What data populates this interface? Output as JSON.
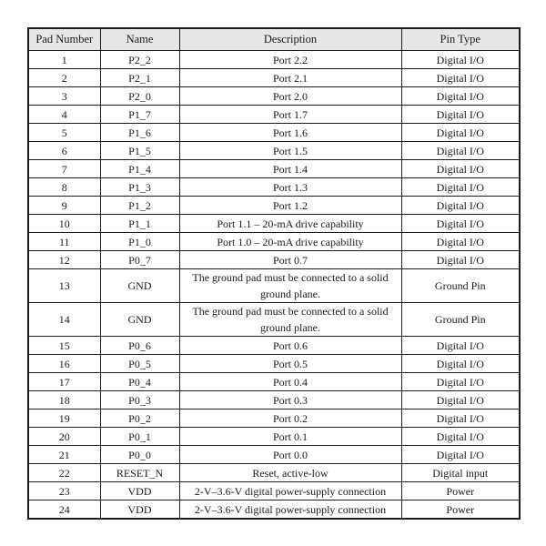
{
  "page": {
    "background_color": "#ffffff",
    "text_color": "#1a1a1a"
  },
  "colors": {
    "header_background": "#e7e7e7",
    "border": "#1c1c1c"
  },
  "table": {
    "headers": [
      "Pad Number",
      "Name",
      "Description",
      "Pin Type"
    ],
    "rows": [
      [
        "1",
        "P2_2",
        "Port 2.2",
        "Digital I/O"
      ],
      [
        "2",
        "P2_1",
        "Port 2.1",
        "Digital I/O"
      ],
      [
        "3",
        "P2_0",
        "Port 2.0",
        "Digital I/O"
      ],
      [
        "4",
        "P1_7",
        "Port 1.7",
        "Digital I/O"
      ],
      [
        "5",
        "P1_6",
        "Port 1.6",
        "Digital I/O"
      ],
      [
        "6",
        "P1_5",
        "Port 1.5",
        "Digital I/O"
      ],
      [
        "7",
        "P1_4",
        "Port 1.4",
        "Digital I/O"
      ],
      [
        "8",
        "P1_3",
        "Port 1.3",
        "Digital I/O"
      ],
      [
        "9",
        "P1_2",
        "Port 1.2",
        "Digital I/O"
      ],
      [
        "10",
        "P1_1",
        "Port 1.1 – 20-mA drive capability",
        "Digital I/O"
      ],
      [
        "11",
        "P1_0",
        "Port 1.0 – 20-mA drive capability",
        "Digital I/O"
      ],
      [
        "12",
        "P0_7",
        "Port 0.7",
        "Digital I/O"
      ],
      [
        "13",
        "GND",
        "The ground pad must be connected to a solid ground plane.",
        "Ground Pin"
      ],
      [
        "14",
        "GND",
        "The ground pad must be connected to a solid ground plane.",
        "Ground Pin"
      ],
      [
        "15",
        "P0_6",
        "Port 0.6",
        "Digital I/O"
      ],
      [
        "16",
        "P0_5",
        "Port 0.5",
        "Digital I/O"
      ],
      [
        "17",
        "P0_4",
        "Port 0.4",
        "Digital I/O"
      ],
      [
        "18",
        "P0_3",
        "Port 0.3",
        "Digital I/O"
      ],
      [
        "19",
        "P0_2",
        "Port 0.2",
        "Digital I/O"
      ],
      [
        "20",
        "P0_1",
        "Port 0.1",
        "Digital I/O"
      ],
      [
        "21",
        "P0_0",
        "Port 0.0",
        "Digital I/O"
      ],
      [
        "22",
        "RESET_N",
        "Reset, active-low",
        "Digital input"
      ],
      [
        "23",
        "VDD",
        "2-V–3.6-V digital power-supply connection",
        "Power"
      ],
      [
        "24",
        "VDD",
        "2-V–3.6-V digital power-supply connection",
        "Power"
      ]
    ]
  }
}
